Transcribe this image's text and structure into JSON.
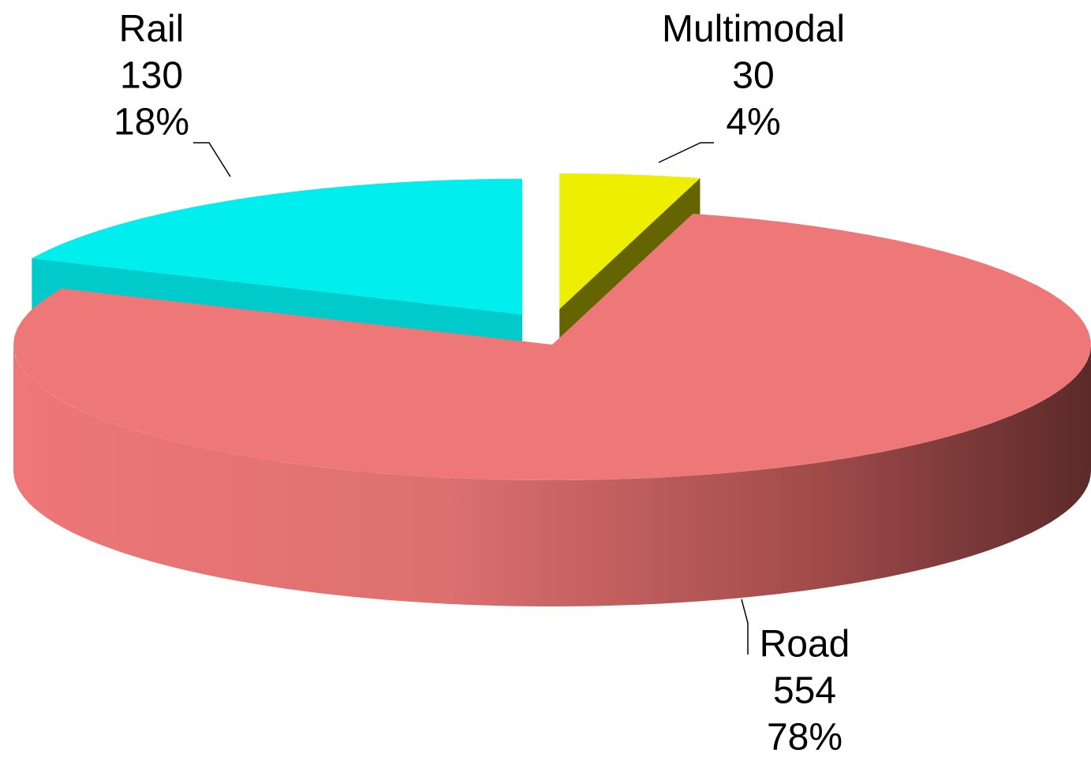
{
  "chart_data": {
    "type": "pie3d",
    "categories": [
      "Multimodal",
      "Road",
      "Rail"
    ],
    "values": [
      30,
      554,
      130
    ],
    "percent_labels": [
      "4%",
      "78%",
      "18%"
    ],
    "colors": [
      "#eeee00",
      "#ee7777",
      "#00eeee"
    ]
  }
}
